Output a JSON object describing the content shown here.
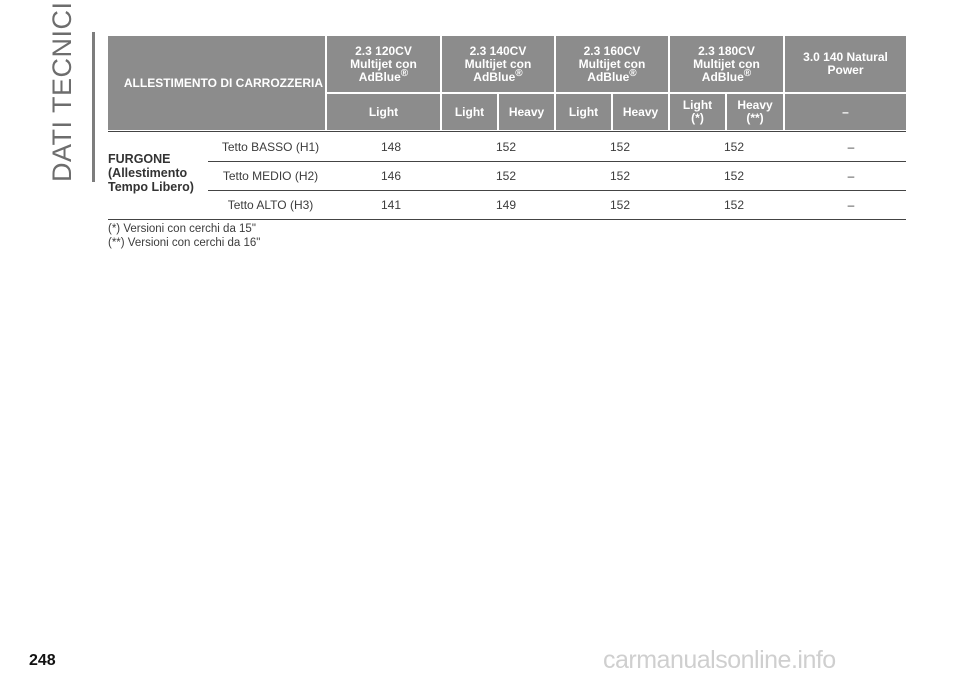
{
  "section_title": "DATI TECNICI",
  "page_number": "248",
  "watermark": "carmanualsonline.info",
  "table": {
    "corner_header": "ALLESTIMENTO DI CARROZZERIA",
    "engines": [
      {
        "line1": "2.3 120CV",
        "line2": "Multijet con",
        "line3": "AdBlue",
        "mark": "®"
      },
      {
        "line1": "2.3 140CV",
        "line2": "Multijet con",
        "line3": "AdBlue",
        "mark": "®"
      },
      {
        "line1": "2.3 160CV",
        "line2": "Multijet con",
        "line3": "AdBlue",
        "mark": "®"
      },
      {
        "line1": "2.3 180CV",
        "line2": "Multijet con",
        "line3": "AdBlue",
        "mark": "®"
      },
      {
        "line1": "3.0 140 Natural",
        "line2": "Power"
      }
    ],
    "subheaders": [
      {
        "line1": "Light"
      },
      {
        "line1": "Light"
      },
      {
        "line1": "Heavy"
      },
      {
        "line1": "Light"
      },
      {
        "line1": "Heavy"
      },
      {
        "line1": "Light",
        "line2": "(*)"
      },
      {
        "line1": "Heavy",
        "line2": "(**)"
      },
      {
        "line1": "–"
      }
    ],
    "group_label": {
      "line1": "FURGONE",
      "line2": "(Allestimento",
      "line3": "Tempo Libero)"
    },
    "rows": [
      {
        "roof": "Tetto BASSO (H1)",
        "values": [
          "148",
          "152",
          "152",
          "152",
          "–"
        ]
      },
      {
        "roof": "Tetto MEDIO (H2)",
        "values": [
          "146",
          "152",
          "152",
          "152",
          "–"
        ]
      },
      {
        "roof": "Tetto ALTO (H3)",
        "values": [
          "141",
          "149",
          "152",
          "152",
          "–"
        ]
      }
    ],
    "notes": [
      "(*) Versioni con cerchi da 15\"",
      "(**) Versioni con cerchi da 16\""
    ]
  }
}
